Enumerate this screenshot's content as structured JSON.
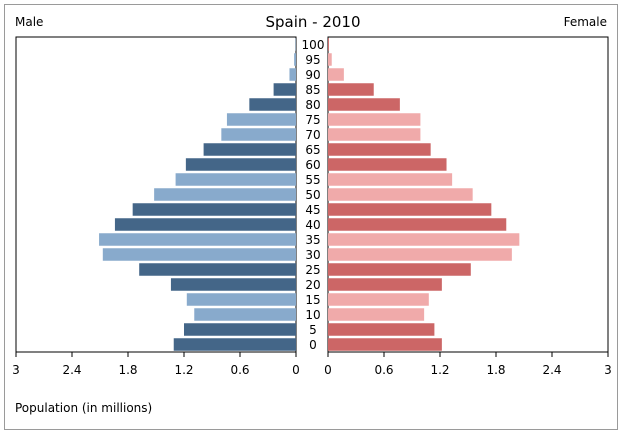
{
  "chart_data": {
    "type": "bar",
    "title": "Spain - 2010",
    "left_label": "Male",
    "right_label": "Female",
    "footnote": "Population (in millions)",
    "xlim": [
      0,
      3
    ],
    "tick_values": [
      0,
      0.6,
      1.2,
      1.8,
      2.4,
      3
    ],
    "left_tick_labels": [
      "3",
      "2.4",
      "1.8",
      "1.2",
      "0.6",
      "0"
    ],
    "right_tick_labels": [
      "0",
      "0.6",
      "1.2",
      "1.8",
      "2.4",
      "3"
    ],
    "categories": [
      "0",
      "5",
      "10",
      "15",
      "20",
      "25",
      "30",
      "35",
      "40",
      "45",
      "50",
      "55",
      "60",
      "65",
      "70",
      "75",
      "80",
      "85",
      "90",
      "95",
      "100"
    ],
    "series": [
      {
        "name": "Male",
        "values": [
          1.31,
          1.2,
          1.09,
          1.17,
          1.34,
          1.68,
          2.07,
          2.11,
          1.94,
          1.75,
          1.52,
          1.29,
          1.18,
          0.99,
          0.8,
          0.74,
          0.5,
          0.24,
          0.07,
          0.02,
          0.005
        ]
      },
      {
        "name": "Female",
        "values": [
          1.22,
          1.14,
          1.03,
          1.08,
          1.22,
          1.53,
          1.97,
          2.05,
          1.91,
          1.75,
          1.55,
          1.33,
          1.27,
          1.1,
          0.99,
          0.99,
          0.77,
          0.49,
          0.17,
          0.04,
          0.01
        ]
      }
    ],
    "colors": {
      "male_dark": "#446688",
      "male_light": "#88aacc",
      "female_dark": "#cc6666",
      "female_light": "#f0aaaa",
      "axis": "#000000"
    },
    "grid": false,
    "legend": "none"
  }
}
